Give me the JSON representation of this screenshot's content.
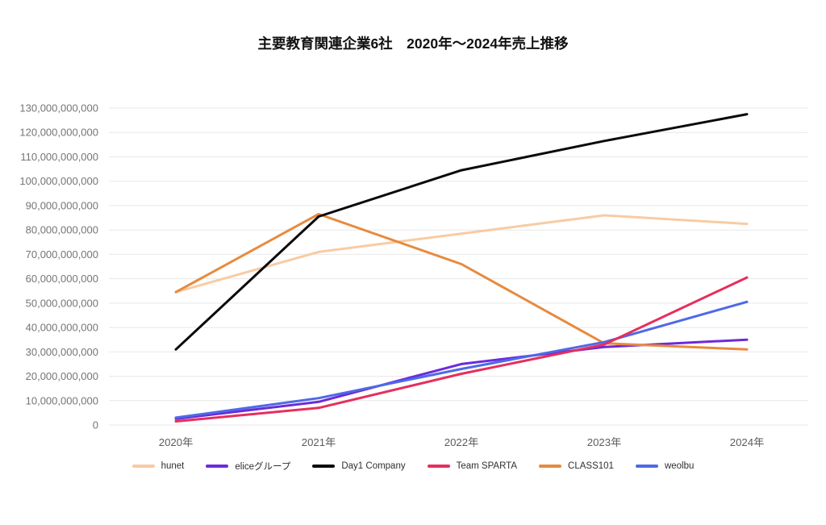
{
  "chart_data": {
    "type": "line",
    "title": "主要教育関連企業6社　2020年～2024年売上推移",
    "categories": [
      "2020年",
      "2021年",
      "2022年",
      "2023年",
      "2024年"
    ],
    "series": [
      {
        "id": "hunet",
        "name": "hunet",
        "color": "#F8CBA4",
        "values": [
          54500000000,
          71000000000,
          78500000000,
          86000000000,
          82500000000
        ]
      },
      {
        "id": "elice-group",
        "name": "eliceグループ",
        "color": "#6C2BD9",
        "values": [
          2500000000,
          9500000000,
          25000000000,
          32000000000,
          35000000000
        ]
      },
      {
        "id": "day1-company",
        "name": "Day1 Company",
        "color": "#0A0A0A",
        "values": [
          31000000000,
          85500000000,
          104500000000,
          116500000000,
          127500000000
        ]
      },
      {
        "id": "team-sparta",
        "name": "Team SPARTA",
        "color": "#E62E5C",
        "values": [
          1500000000,
          7000000000,
          21000000000,
          33000000000,
          60500000000
        ]
      },
      {
        "id": "class101",
        "name": "CLASS101",
        "color": "#E78A3E",
        "values": [
          54500000000,
          86500000000,
          66000000000,
          33500000000,
          31000000000
        ]
      },
      {
        "id": "weolbu",
        "name": "weolbu",
        "color": "#4E6AE6",
        "values": [
          3000000000,
          11000000000,
          23000000000,
          34000000000,
          50500000000
        ]
      }
    ],
    "xlabel": "",
    "ylabel": "",
    "ylim": [
      0,
      130000000000
    ],
    "ytick_step": 10000000000,
    "ytick_labels": [
      "0",
      "10,000,000,000",
      "20,000,000,000",
      "30,000,000,000",
      "40,000,000,000",
      "50,000,000,000",
      "60,000,000,000",
      "70,000,000,000",
      "80,000,000,000",
      "90,000,000,000",
      "100,000,000,000",
      "110,000,000,000",
      "120,000,000,000",
      "130,000,000,000"
    ],
    "grid": true,
    "legend_position": "bottom",
    "palette": {
      "background": "#FFFFFF",
      "gridline": "#E8E8E8",
      "y_tick_label": "#757575",
      "x_tick_label": "#5C5C5C",
      "legend_label": "#2F2F2F",
      "title": "#111111"
    }
  }
}
